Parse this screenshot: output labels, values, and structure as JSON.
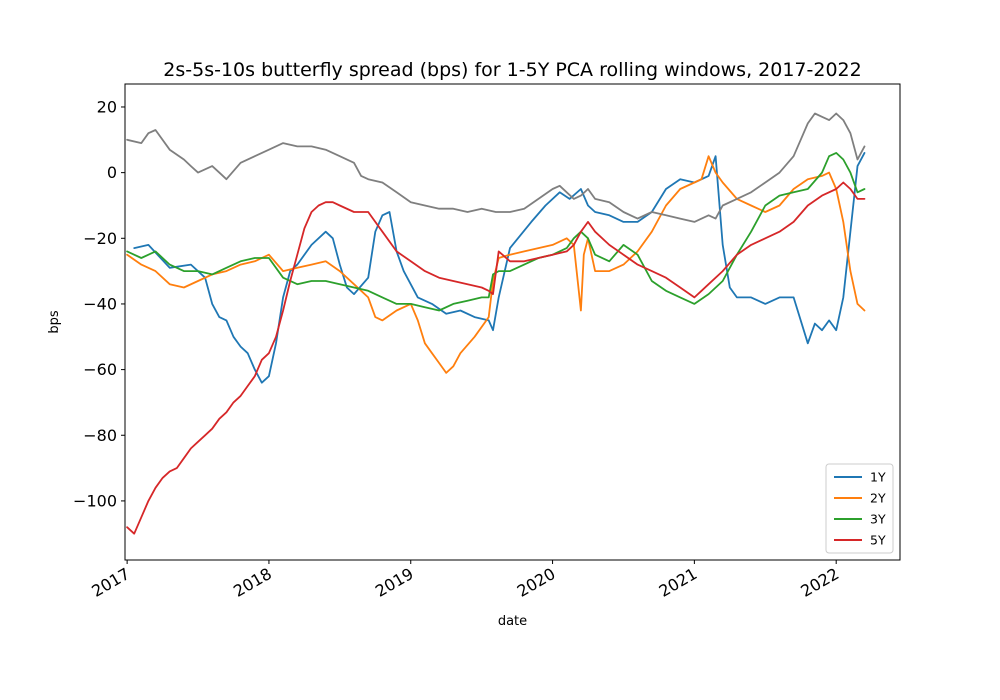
{
  "chart_data": {
    "type": "line",
    "title": "2s-5s-10s butterfly spread (bps) for 1-5Y PCA rolling windows, 2017-2022",
    "xlabel": "date",
    "ylabel": "bps",
    "xlim": [
      2016.985,
      2022.45
    ],
    "ylim": [
      -118,
      27
    ],
    "yticks": [
      20,
      0,
      -20,
      -40,
      -60,
      -80,
      -100
    ],
    "yticklabels": [
      "20",
      "0",
      "−20",
      "−40",
      "−60",
      "−80",
      "−100"
    ],
    "xticks": [
      2017,
      2018,
      2019,
      2020,
      2021,
      2022
    ],
    "xticklabels": [
      "2017",
      "2018",
      "2019",
      "2020",
      "2021",
      "2022"
    ],
    "grid": false,
    "legend": {
      "position": "lower-right"
    },
    "series": [
      {
        "name": "1Y",
        "color": "#1f77b4",
        "x": [
          2017.05,
          2017.15,
          2017.3,
          2017.45,
          2017.55,
          2017.6,
          2017.65,
          2017.7,
          2017.75,
          2017.8,
          2017.85,
          2017.9,
          2017.95,
          2018.0,
          2018.05,
          2018.1,
          2018.15,
          2018.2,
          2018.3,
          2018.4,
          2018.45,
          2018.5,
          2018.55,
          2018.6,
          2018.7,
          2018.75,
          2018.8,
          2018.85,
          2018.9,
          2018.95,
          2019.05,
          2019.15,
          2019.25,
          2019.35,
          2019.45,
          2019.55,
          2019.58,
          2019.62,
          2019.7,
          2019.85,
          2019.95,
          2020.05,
          2020.12,
          2020.2,
          2020.25,
          2020.3,
          2020.4,
          2020.5,
          2020.6,
          2020.7,
          2020.8,
          2020.9,
          2021.0,
          2021.1,
          2021.15,
          2021.2,
          2021.25,
          2021.3,
          2021.4,
          2021.5,
          2021.6,
          2021.7,
          2021.8,
          2021.85,
          2021.9,
          2021.95,
          2022.0,
          2022.05,
          2022.1,
          2022.15,
          2022.2
        ],
        "y": [
          -23,
          -22,
          -29,
          -28,
          -32,
          -40,
          -44,
          -45,
          -50,
          -53,
          -55,
          -60,
          -64,
          -62,
          -52,
          -38,
          -30,
          -28,
          -22,
          -18,
          -20,
          -28,
          -35,
          -37,
          -32,
          -18,
          -13,
          -12,
          -24,
          -30,
          -38,
          -40,
          -43,
          -42,
          -44,
          -45,
          -48,
          -38,
          -23,
          -15,
          -10,
          -6,
          -8,
          -5,
          -10,
          -12,
          -13,
          -15,
          -15,
          -12,
          -5,
          -2,
          -3,
          -1,
          5,
          -22,
          -35,
          -38,
          -38,
          -40,
          -38,
          -38,
          -52,
          -46,
          -48,
          -45,
          -48,
          -38,
          -18,
          2,
          6
        ]
      },
      {
        "name": "2Y",
        "color": "#ff7f0e",
        "x": [
          2017.0,
          2017.1,
          2017.2,
          2017.3,
          2017.4,
          2017.5,
          2017.6,
          2017.7,
          2017.8,
          2017.9,
          2018.0,
          2018.1,
          2018.2,
          2018.3,
          2018.4,
          2018.5,
          2018.6,
          2018.7,
          2018.75,
          2018.8,
          2018.9,
          2019.0,
          2019.05,
          2019.1,
          2019.15,
          2019.2,
          2019.25,
          2019.3,
          2019.35,
          2019.45,
          2019.55,
          2019.58,
          2019.62,
          2019.7,
          2019.8,
          2019.9,
          2020.0,
          2020.1,
          2020.15,
          2020.2,
          2020.22,
          2020.25,
          2020.3,
          2020.4,
          2020.5,
          2020.6,
          2020.7,
          2020.8,
          2020.9,
          2021.0,
          2021.05,
          2021.1,
          2021.15,
          2021.2,
          2021.3,
          2021.4,
          2021.5,
          2021.6,
          2021.7,
          2021.8,
          2021.9,
          2021.95,
          2022.0,
          2022.05,
          2022.1,
          2022.15,
          2022.2
        ],
        "y": [
          -25,
          -28,
          -30,
          -34,
          -35,
          -33,
          -31,
          -30,
          -28,
          -27,
          -25,
          -30,
          -29,
          -28,
          -27,
          -30,
          -34,
          -38,
          -44,
          -45,
          -42,
          -40,
          -45,
          -52,
          -55,
          -58,
          -61,
          -59,
          -55,
          -50,
          -44,
          -33,
          -26,
          -25,
          -24,
          -23,
          -22,
          -20,
          -22,
          -42,
          -25,
          -20,
          -30,
          -30,
          -28,
          -24,
          -18,
          -10,
          -5,
          -3,
          -2,
          5,
          0,
          -3,
          -8,
          -10,
          -12,
          -10,
          -5,
          -2,
          -1,
          0,
          -5,
          -15,
          -30,
          -40,
          -42
        ]
      },
      {
        "name": "3Y",
        "color": "#2ca02c",
        "x": [
          2017.0,
          2017.1,
          2017.2,
          2017.3,
          2017.4,
          2017.5,
          2017.6,
          2017.7,
          2017.8,
          2017.9,
          2018.0,
          2018.1,
          2018.2,
          2018.3,
          2018.4,
          2018.5,
          2018.6,
          2018.7,
          2018.8,
          2018.9,
          2019.0,
          2019.1,
          2019.2,
          2019.3,
          2019.4,
          2019.5,
          2019.55,
          2019.58,
          2019.62,
          2019.7,
          2019.8,
          2019.9,
          2020.0,
          2020.1,
          2020.15,
          2020.2,
          2020.25,
          2020.3,
          2020.4,
          2020.5,
          2020.6,
          2020.7,
          2020.8,
          2020.9,
          2021.0,
          2021.1,
          2021.2,
          2021.3,
          2021.4,
          2021.5,
          2021.6,
          2021.7,
          2021.8,
          2021.9,
          2021.95,
          2022.0,
          2022.05,
          2022.1,
          2022.15,
          2022.2
        ],
        "y": [
          -24,
          -26,
          -24,
          -28,
          -30,
          -30,
          -31,
          -29,
          -27,
          -26,
          -26,
          -32,
          -34,
          -33,
          -33,
          -34,
          -35,
          -36,
          -38,
          -40,
          -40,
          -41,
          -42,
          -40,
          -39,
          -38,
          -38,
          -31,
          -30,
          -30,
          -28,
          -26,
          -25,
          -23,
          -20,
          -18,
          -20,
          -25,
          -27,
          -22,
          -25,
          -33,
          -36,
          -38,
          -40,
          -37,
          -33,
          -25,
          -18,
          -10,
          -7,
          -6,
          -5,
          0,
          5,
          6,
          4,
          0,
          -6,
          -5
        ]
      },
      {
        "name": "5Y",
        "color": "#d62728",
        "x": [
          2017.0,
          2017.05,
          2017.1,
          2017.15,
          2017.2,
          2017.25,
          2017.3,
          2017.35,
          2017.4,
          2017.45,
          2017.5,
          2017.55,
          2017.6,
          2017.65,
          2017.7,
          2017.75,
          2017.8,
          2017.85,
          2017.9,
          2017.95,
          2018.0,
          2018.05,
          2018.1,
          2018.15,
          2018.2,
          2018.25,
          2018.3,
          2018.35,
          2018.4,
          2018.45,
          2018.5,
          2018.6,
          2018.7,
          2018.8,
          2018.9,
          2019.0,
          2019.1,
          2019.2,
          2019.3,
          2019.4,
          2019.5,
          2019.55,
          2019.58,
          2019.62,
          2019.7,
          2019.8,
          2019.9,
          2020.0,
          2020.1,
          2020.15,
          2020.2,
          2020.25,
          2020.3,
          2020.4,
          2020.5,
          2020.6,
          2020.7,
          2020.8,
          2020.9,
          2021.0,
          2021.05,
          2021.1,
          2021.2,
          2021.3,
          2021.4,
          2021.5,
          2021.6,
          2021.7,
          2021.8,
          2021.9,
          2022.0,
          2022.05,
          2022.1,
          2022.15,
          2022.2
        ],
        "y": [
          -108,
          -110,
          -105,
          -100,
          -96,
          -93,
          -91,
          -90,
          -87,
          -84,
          -82,
          -80,
          -78,
          -75,
          -73,
          -70,
          -68,
          -65,
          -62,
          -57,
          -55,
          -50,
          -42,
          -33,
          -25,
          -17,
          -12,
          -10,
          -9,
          -9,
          -10,
          -12,
          -12,
          -18,
          -24,
          -27,
          -30,
          -32,
          -33,
          -34,
          -35,
          -36,
          -37,
          -24,
          -27,
          -27,
          -26,
          -25,
          -24,
          -22,
          -18,
          -15,
          -18,
          -22,
          -25,
          -28,
          -30,
          -32,
          -35,
          -38,
          -36,
          -34,
          -30,
          -25,
          -22,
          -20,
          -18,
          -15,
          -10,
          -7,
          -5,
          -3,
          -5,
          -8,
          -8
        ]
      },
      {
        "color": "#7f7f7f",
        "x": [
          2017.0,
          2017.1,
          2017.15,
          2017.2,
          2017.3,
          2017.4,
          2017.45,
          2017.5,
          2017.6,
          2017.65,
          2017.7,
          2017.8,
          2017.9,
          2018.0,
          2018.1,
          2018.2,
          2018.3,
          2018.4,
          2018.5,
          2018.6,
          2018.65,
          2018.7,
          2018.8,
          2018.9,
          2019.0,
          2019.1,
          2019.2,
          2019.3,
          2019.4,
          2019.5,
          2019.6,
          2019.7,
          2019.8,
          2019.9,
          2020.0,
          2020.05,
          2020.1,
          2020.15,
          2020.2,
          2020.25,
          2020.3,
          2020.4,
          2020.5,
          2020.6,
          2020.7,
          2020.8,
          2020.9,
          2021.0,
          2021.1,
          2021.15,
          2021.2,
          2021.3,
          2021.4,
          2021.5,
          2021.6,
          2021.7,
          2021.75,
          2021.8,
          2021.85,
          2021.9,
          2021.95,
          2022.0,
          2022.05,
          2022.1,
          2022.15,
          2022.2
        ],
        "y": [
          10,
          9,
          12,
          13,
          7,
          4,
          2,
          0,
          2,
          0,
          -2,
          3,
          5,
          7,
          9,
          8,
          8,
          7,
          5,
          3,
          -1,
          -2,
          -3,
          -6,
          -9,
          -10,
          -11,
          -11,
          -12,
          -11,
          -12,
          -12,
          -11,
          -8,
          -5,
          -4,
          -6,
          -8,
          -7,
          -5,
          -8,
          -9,
          -12,
          -14,
          -12,
          -13,
          -14,
          -15,
          -13,
          -14,
          -10,
          -8,
          -6,
          -3,
          0,
          5,
          10,
          15,
          18,
          17,
          16,
          18,
          16,
          12,
          4,
          8
        ]
      }
    ]
  }
}
